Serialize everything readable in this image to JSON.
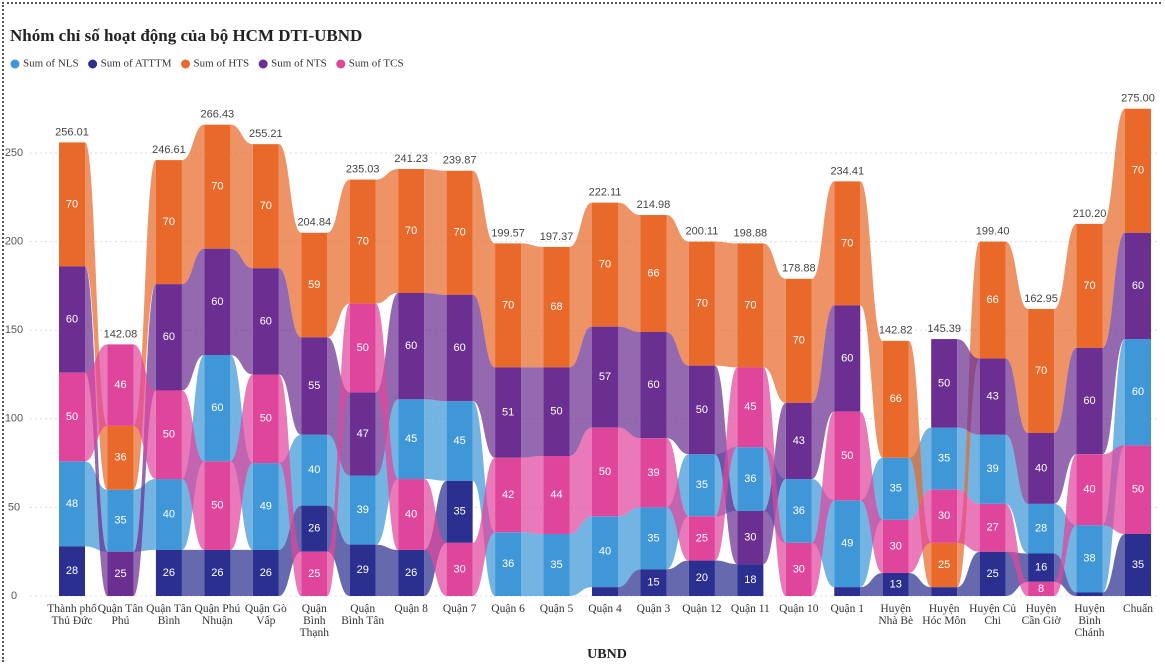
{
  "chart_data": {
    "type": "ribbon",
    "title": "Nhóm chỉ số hoạt động của bộ HCM DTI-UBND",
    "x_label": "UBND",
    "categories": [
      "Thành phố Thủ Đức",
      "Quận Tân Phú",
      "Quận Tân Bình",
      "Quận Phú Nhuận",
      "Quận Gò Vấp",
      "Quận Bình Thạnh",
      "Quận Bình Tân",
      "Quận 8",
      "Quận 7",
      "Quận 6",
      "Quận 5",
      "Quận 4",
      "Quận 3",
      "Quận 12",
      "Quận 11",
      "Quận 10",
      "Quận 1",
      "Huyện Nhà Bè",
      "Huyện Hóc Môn",
      "Huyện Củ Chi",
      "Huyện Cần Giờ",
      "Huyện Bình Chánh",
      "Chuẩn"
    ],
    "series": [
      {
        "name": "Sum of NLS",
        "color": "#3f97d8",
        "values": [
          48,
          35,
          40,
          60,
          49,
          40,
          39,
          45,
          45,
          36,
          35,
          40,
          35,
          35,
          36,
          36,
          49,
          35,
          35,
          39,
          28,
          38,
          60
        ]
      },
      {
        "name": "Sum of ATTTM",
        "color": "#2b2f8f",
        "values": [
          28,
          null,
          26,
          26,
          26,
          26,
          29,
          26,
          35,
          null,
          null,
          5,
          15,
          20,
          18,
          null,
          5,
          13,
          5,
          25,
          16,
          2,
          35
        ]
      },
      {
        "name": "Sum of HTS",
        "color": "#e8692a",
        "values": [
          70,
          36,
          70,
          70,
          70,
          59,
          70,
          70,
          70,
          70,
          68,
          70,
          66,
          70,
          70,
          70,
          70,
          66,
          25,
          66,
          70,
          70,
          70
        ]
      },
      {
        "name": "Sum of NTS",
        "color": "#6b2f91",
        "values": [
          60,
          25,
          60,
          60,
          60,
          55,
          47,
          60,
          60,
          51,
          50,
          57,
          60,
          50,
          30,
          43,
          60,
          null,
          50,
          43,
          40,
          60,
          60
        ]
      },
      {
        "name": "Sum of TCS",
        "color": "#e0459c",
        "values": [
          50,
          46,
          50,
          50,
          50,
          25,
          50,
          40,
          30,
          42,
          44,
          50,
          39,
          25,
          45,
          30,
          50,
          30,
          30,
          27,
          8,
          40,
          50
        ]
      }
    ],
    "totals": [
      256.01,
      142.08,
      246.61,
      266.43,
      255.21,
      204.84,
      235.03,
      241.23,
      239.87,
      199.57,
      197.37,
      222.11,
      214.98,
      200.11,
      198.88,
      178.88,
      234.41,
      142.82,
      145.39,
      199.4,
      162.95,
      210.2,
      275.0
    ],
    "total_labels": [
      "256.01",
      "142.08",
      "246.61",
      "266.43",
      "255.21",
      "204.84",
      "235.03",
      "241.23",
      "239.87",
      "199.57",
      "197.37",
      "222.11",
      "214.98",
      "200.11",
      "198.88",
      "178.88",
      "234.41",
      "142.82",
      "145.39",
      "199.40",
      "162.95",
      "210.20",
      "275.00"
    ],
    "ylim": [
      0,
      285
    ],
    "yticks": [
      0,
      50,
      100,
      150,
      200,
      250
    ],
    "grid": true
  }
}
